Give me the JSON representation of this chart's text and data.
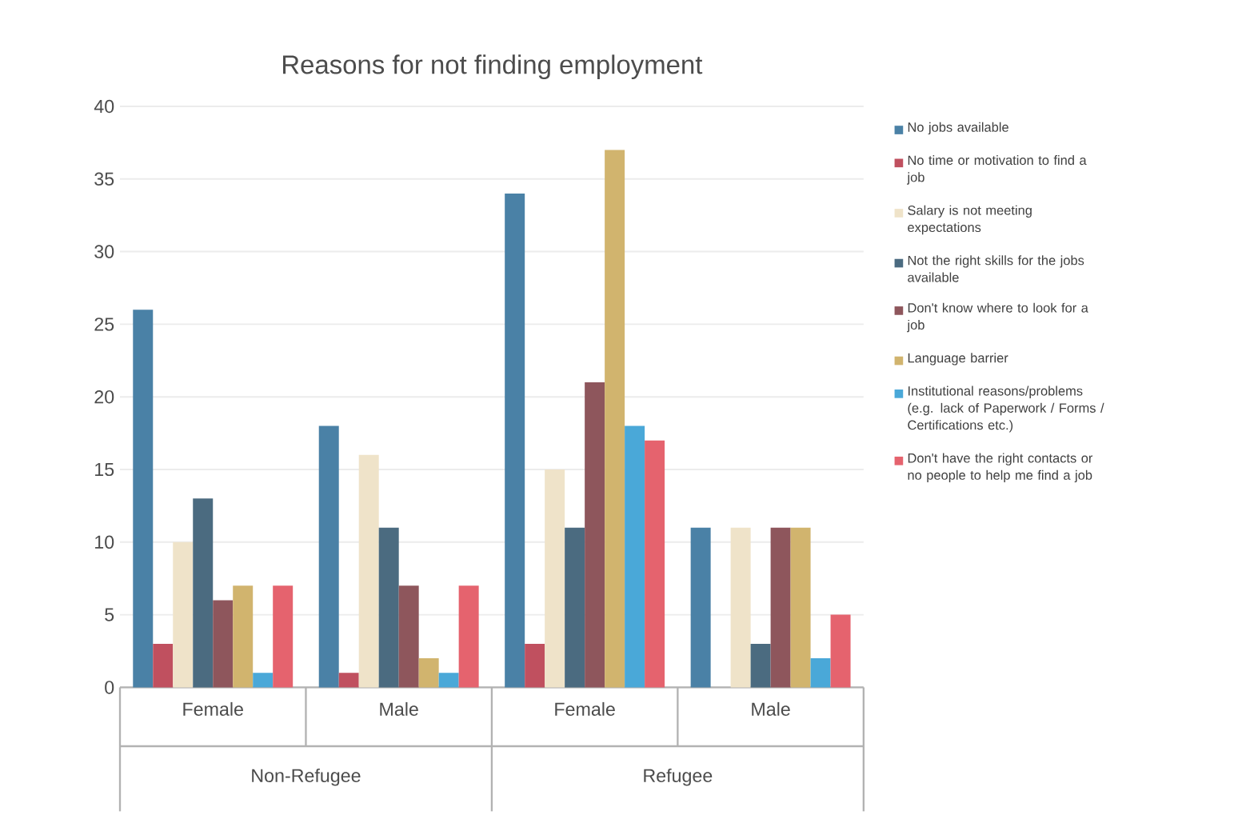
{
  "chart_data": {
    "type": "bar",
    "title": "Reasons for not finding employment",
    "categories": [
      "Female",
      "Male",
      "Female",
      "Male"
    ],
    "series": [
      {
        "name": "No jobs available",
        "color": "#4a81a6",
        "values": [
          26,
          18,
          34,
          11
        ]
      },
      {
        "name": "No time or motivation to find a job",
        "color": "#c0505f",
        "values": [
          3,
          1,
          3,
          0
        ]
      },
      {
        "name": "Salary is not meeting expectations",
        "color": "#efe3c9",
        "values": [
          10,
          16,
          15,
          11
        ]
      },
      {
        "name": "Not the right skills for the jobs available",
        "color": "#4b6b80",
        "values": [
          13,
          11,
          11,
          3
        ]
      },
      {
        "name": "Don't know where to look for a job",
        "color": "#8e565c",
        "values": [
          6,
          7,
          21,
          11
        ]
      },
      {
        "name": "Language barrier",
        "color": "#d1b46e",
        "values": [
          7,
          2,
          37,
          11
        ]
      },
      {
        "name": "Institutional reasons/problems (e.g. lack of Paperwork / Forms / Certifications etc.)",
        "color": "#4aa8d8",
        "values": [
          1,
          1,
          18,
          2
        ]
      },
      {
        "name": "Don't have the right contacts or no people to help me find a job",
        "color": "#e5636e",
        "values": [
          7,
          7,
          17,
          5
        ]
      }
    ],
    "annotations": [
      "Non-Refugee",
      "Refugee"
    ],
    "ylim": [
      0,
      40
    ],
    "yticks": [
      0,
      5,
      10,
      15,
      20,
      25,
      30,
      35,
      40
    ],
    "grid": "y",
    "legend": "right"
  }
}
